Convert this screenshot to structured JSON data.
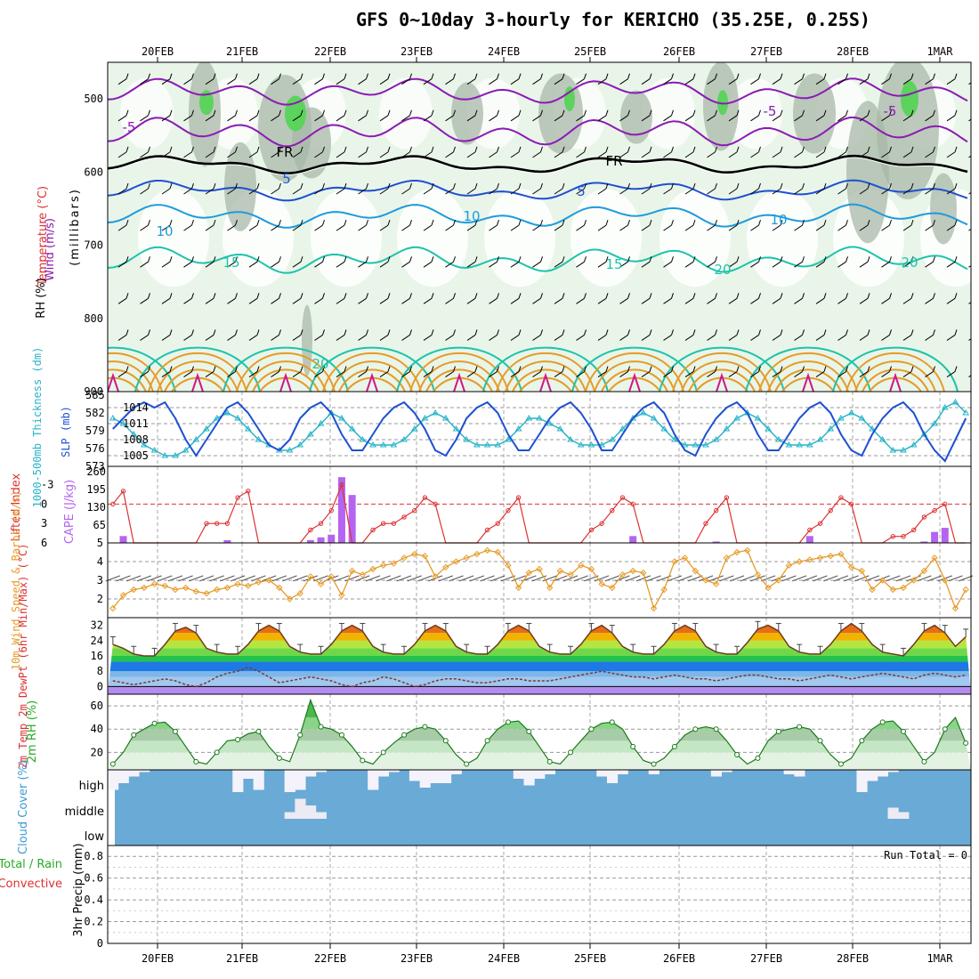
{
  "title": "GFS 0~10day 3-hourly for KERICHO (35.25E, 0.25S)",
  "dates": [
    "20FEB",
    "21FEB",
    "22FEB",
    "23FEB",
    "24FEB",
    "25FEB",
    "26FEB",
    "27FEB",
    "28FEB",
    "1MAR"
  ],
  "colors": {
    "purple": "#8c1ab4",
    "blue": "#1e50d2",
    "lightblue": "#1e9bdc",
    "teal": "#1ec3aa",
    "green": "#28aa28",
    "orange": "#e69b28",
    "red": "#dc3232",
    "cyan": "#28b4c8",
    "cape": "#b464f0",
    "cloud": "#6aaad6"
  },
  "chart_data": [
    {
      "type": "line",
      "panel": "upper-air",
      "ylabel_parts": [
        "Wind (m/s)",
        "Temperature (°C)",
        "RH (%)",
        "(millibars)"
      ],
      "ylim": [
        450,
        900
      ],
      "yticks": [
        500,
        600,
        700,
        800,
        900
      ],
      "ytick_labels": [
        "500",
        "600",
        "700",
        "800",
        "900"
      ],
      "contour_labels": [
        "-5",
        "-5",
        "-5",
        "FR",
        "FR",
        "5",
        "5",
        "10",
        "10",
        "10",
        "15",
        "15",
        "20",
        "20",
        "20"
      ]
    },
    {
      "type": "line",
      "panel": "slp-thickness",
      "ylabel_left": "1000-500mb Thickness (dm)",
      "ylabel_right": "SLP (mb)",
      "yticks_left": [
        "585",
        "582",
        "579",
        "576",
        "573"
      ],
      "yticks_right": [
        "1014",
        "1011",
        "1008",
        "1005"
      ],
      "series": [
        {
          "name": "SLP",
          "color": "#1e50d2",
          "values": [
            1010,
            1012,
            1014,
            1015,
            1014,
            1015,
            1012,
            1008,
            1005,
            1008,
            1011,
            1014,
            1015,
            1013,
            1010,
            1007,
            1006,
            1008,
            1012,
            1014,
            1015,
            1013,
            1009,
            1006,
            1006,
            1009,
            1012,
            1014,
            1015,
            1013,
            1010,
            1006,
            1005,
            1008,
            1012,
            1014,
            1015,
            1013,
            1009,
            1006,
            1006,
            1009,
            1012,
            1014,
            1015,
            1013,
            1010,
            1006,
            1006,
            1009,
            1012,
            1014,
            1015,
            1013,
            1009,
            1006,
            1005,
            1009,
            1012,
            1014,
            1015,
            1013,
            1009,
            1006,
            1006,
            1009,
            1012,
            1014,
            1015,
            1013,
            1009,
            1006,
            1005,
            1009,
            1012,
            1014,
            1015,
            1013,
            1009,
            1006,
            1004,
            1008,
            1012
          ]
        },
        {
          "name": "Thickness",
          "color": "#28b4c8",
          "values": [
            581,
            580,
            578,
            576,
            575,
            574,
            574,
            575,
            577,
            579,
            581,
            582,
            581,
            579,
            577,
            576,
            575,
            575,
            576,
            578,
            580,
            582,
            581,
            579,
            577,
            576,
            576,
            576,
            577,
            579,
            581,
            582,
            581,
            579,
            577,
            576,
            576,
            576,
            577,
            579,
            581,
            581,
            580,
            579,
            577,
            576,
            576,
            576,
            577,
            579,
            581,
            582,
            581,
            579,
            577,
            576,
            576,
            576,
            577,
            579,
            581,
            582,
            581,
            579,
            577,
            576,
            576,
            576,
            577,
            579,
            581,
            582,
            581,
            579,
            577,
            575,
            575,
            576,
            578,
            580,
            583,
            584,
            582
          ]
        }
      ]
    },
    {
      "type": "bar",
      "panel": "lifted-cape",
      "ylabel_left": "Lifted Index",
      "ylabel_right": "CAPE (J/kg)",
      "yticks_left": [
        "-3",
        "0",
        "3",
        "6"
      ],
      "yticks_right": [
        "260",
        "195",
        "130",
        "65"
      ],
      "series": [
        {
          "name": "Lifted Index",
          "color": "#dc3232",
          "values": [
            0,
            -2,
            6,
            6,
            6,
            6,
            6,
            6,
            6,
            3,
            3,
            3,
            -1,
            -2,
            6,
            6,
            6,
            6,
            6,
            4,
            3,
            1,
            -3,
            6,
            6,
            4,
            3,
            3,
            2,
            1,
            -1,
            0,
            6,
            6,
            6,
            6,
            4,
            3,
            1,
            -1,
            6,
            6,
            6,
            6,
            6,
            6,
            4,
            3,
            1,
            -1,
            0,
            6,
            6,
            6,
            6,
            6,
            6,
            3,
            1,
            -1,
            6,
            6,
            6,
            6,
            6,
            6,
            6,
            4,
            3,
            1,
            -1,
            0,
            6,
            6,
            6,
            5,
            5,
            4,
            2,
            1,
            0,
            6,
            6
          ]
        },
        {
          "name": "CAPE",
          "color": "#b464f0",
          "values": [
            0,
            25,
            0,
            0,
            0,
            0,
            0,
            0,
            0,
            0,
            0,
            10,
            0,
            0,
            0,
            0,
            0,
            0,
            0,
            10,
            20,
            30,
            240,
            175,
            0,
            0,
            0,
            0,
            0,
            0,
            0,
            0,
            0,
            0,
            0,
            0,
            0,
            0,
            0,
            0,
            0,
            0,
            0,
            0,
            0,
            0,
            0,
            0,
            0,
            0,
            25,
            0,
            0,
            0,
            0,
            0,
            0,
            0,
            5,
            0,
            0,
            0,
            0,
            0,
            0,
            0,
            0,
            25,
            0,
            0,
            0,
            0,
            0,
            0,
            0,
            0,
            0,
            0,
            5,
            40,
            55,
            0,
            0
          ]
        }
      ]
    },
    {
      "type": "line",
      "panel": "wind10m",
      "ylabel": "10m Wind Speed & Barbs (m/s)",
      "yticks": [
        "5",
        "4",
        "3",
        "2"
      ],
      "ylim": [
        1,
        5
      ],
      "series": [
        {
          "name": "10m Wind",
          "color": "#e69b28",
          "values": [
            1.5,
            2.2,
            2.5,
            2.6,
            2.8,
            2.7,
            2.5,
            2.6,
            2.4,
            2.3,
            2.5,
            2.6,
            2.8,
            2.7,
            2.9,
            3.0,
            2.6,
            2.0,
            2.3,
            3.2,
            2.8,
            3.2,
            2.2,
            3.5,
            3.3,
            3.6,
            3.8,
            3.9,
            4.2,
            4.4,
            4.3,
            3.2,
            3.7,
            4.0,
            4.2,
            4.4,
            4.6,
            4.5,
            3.8,
            2.6,
            3.4,
            3.6,
            2.6,
            3.5,
            3.3,
            3.8,
            3.6,
            2.8,
            2.6,
            3.3,
            3.5,
            3.4,
            1.5,
            2.5,
            4.0,
            4.2,
            3.5,
            3.0,
            2.8,
            4.2,
            4.5,
            4.6,
            3.3,
            2.6,
            3.0,
            3.8,
            4.0,
            4.1,
            4.2,
            4.3,
            4.4,
            3.7,
            3.5,
            2.5,
            3.0,
            2.5,
            2.6,
            3.0,
            3.5,
            4.2,
            3.0,
            1.5,
            2.5
          ]
        }
      ]
    },
    {
      "type": "area",
      "panel": "temp2m",
      "ylabel": "2m Temp 2m DewPt (6hr Min/Max) (°C)",
      "yticks": [
        "32",
        "24",
        "16",
        "8",
        "0"
      ],
      "ylim": [
        -4,
        36
      ],
      "series": [
        {
          "name": "2m Temp",
          "values": [
            22,
            20,
            17,
            16,
            16,
            22,
            29,
            31,
            28,
            20,
            18,
            17,
            17,
            22,
            29,
            32,
            29,
            21,
            18,
            17,
            17,
            22,
            29,
            32,
            29,
            21,
            18,
            17,
            17,
            22,
            29,
            32,
            29,
            21,
            18,
            17,
            17,
            22,
            29,
            32,
            29,
            21,
            18,
            17,
            17,
            22,
            29,
            32,
            28,
            21,
            18,
            17,
            17,
            22,
            29,
            32,
            29,
            21,
            18,
            17,
            17,
            23,
            30,
            32,
            29,
            21,
            18,
            17,
            17,
            22,
            29,
            33,
            29,
            22,
            18,
            17,
            16,
            22,
            29,
            32,
            28,
            21,
            26
          ]
        },
        {
          "name": "2m DewPt",
          "values": [
            3,
            2,
            1,
            2,
            3,
            4,
            3,
            1,
            0,
            2,
            5,
            7,
            8,
            10,
            8,
            5,
            2,
            3,
            4,
            5,
            4,
            3,
            1,
            0,
            2,
            3,
            5,
            4,
            2,
            0,
            1,
            3,
            4,
            4,
            3,
            2,
            2,
            3,
            4,
            4,
            3,
            3,
            3,
            4,
            5,
            6,
            7,
            8,
            7,
            6,
            5,
            5,
            4,
            5,
            6,
            5,
            4,
            4,
            3,
            4,
            5,
            6,
            6,
            5,
            4,
            4,
            3,
            4,
            5,
            6,
            5,
            4,
            5,
            6,
            7,
            6,
            5,
            4,
            6,
            7,
            6,
            5,
            6
          ]
        }
      ]
    },
    {
      "type": "area",
      "panel": "rh2m",
      "ylabel": "2m RH (%)",
      "yticks": [
        "60",
        "40",
        "20"
      ],
      "ylim": [
        5,
        70
      ],
      "series": [
        {
          "name": "2m RH",
          "values": [
            10,
            20,
            35,
            40,
            45,
            46,
            38,
            25,
            12,
            10,
            20,
            30,
            31,
            36,
            38,
            25,
            15,
            12,
            35,
            65,
            42,
            40,
            35,
            25,
            13,
            10,
            20,
            28,
            35,
            40,
            42,
            40,
            30,
            18,
            10,
            15,
            30,
            40,
            46,
            47,
            38,
            25,
            12,
            10,
            20,
            30,
            40,
            45,
            46,
            40,
            25,
            13,
            10,
            15,
            25,
            35,
            40,
            42,
            40,
            30,
            18,
            10,
            15,
            30,
            38,
            40,
            42,
            40,
            30,
            18,
            10,
            15,
            30,
            40,
            46,
            47,
            38,
            25,
            12,
            20,
            40,
            50,
            28
          ]
        }
      ]
    },
    {
      "type": "bar",
      "panel": "cloud",
      "ylabel": "Cloud Cover (%)",
      "yticks": [
        "high",
        "middle",
        "low"
      ],
      "series": [
        {
          "name": "high",
          "values": [
            0.9,
            0.6,
            0.3,
            0.1,
            0,
            0,
            0,
            0,
            0,
            0,
            0,
            0,
            1,
            0.4,
            0.9,
            0,
            0,
            1,
            0.9,
            0.3,
            0.1,
            0,
            0,
            0,
            0,
            0.9,
            0.3,
            0.1,
            0,
            0.5,
            0.8,
            0.6,
            0.6,
            0.2,
            0,
            0,
            0,
            0,
            0,
            0.4,
            0.7,
            0.4,
            0.2,
            0,
            0,
            0,
            0,
            0.3,
            0.6,
            0.2,
            0,
            0,
            0.2,
            0,
            0,
            0,
            0,
            0,
            0.3,
            0.1,
            0,
            0,
            0,
            0,
            0,
            0.2,
            0.3,
            0,
            0,
            0,
            0,
            0,
            1,
            0.5,
            0.3,
            0.1,
            0,
            0,
            0,
            0,
            0,
            0,
            0
          ]
        },
        {
          "name": "middle",
          "values": [
            0,
            0,
            0,
            0,
            0,
            0,
            0,
            0,
            0,
            0,
            0,
            0,
            0,
            0,
            0,
            0,
            0,
            0.3,
            0.9,
            0.6,
            0.3,
            0,
            0,
            0,
            0,
            0,
            0,
            0,
            0,
            0,
            0,
            0,
            0,
            0,
            0,
            0,
            0,
            0,
            0,
            0,
            0,
            0,
            0,
            0,
            0,
            0,
            0,
            0,
            0,
            0,
            0,
            0,
            0,
            0,
            0,
            0,
            0,
            0,
            0,
            0,
            0,
            0,
            0,
            0,
            0,
            0,
            0,
            0,
            0,
            0,
            0,
            0,
            0,
            0,
            0,
            0.5,
            0.3,
            0,
            0,
            0,
            0,
            0,
            0
          ]
        }
      ]
    },
    {
      "type": "bar",
      "panel": "precip",
      "ylabel_parts": [
        "Total / Rain",
        "Convective",
        "3hr Precip (mm)"
      ],
      "yticks": [
        "0.8",
        "0.6",
        "0.4",
        "0.2",
        "0"
      ],
      "ylim": [
        0,
        0.9
      ],
      "annotation": "Run Total = 0"
    }
  ]
}
